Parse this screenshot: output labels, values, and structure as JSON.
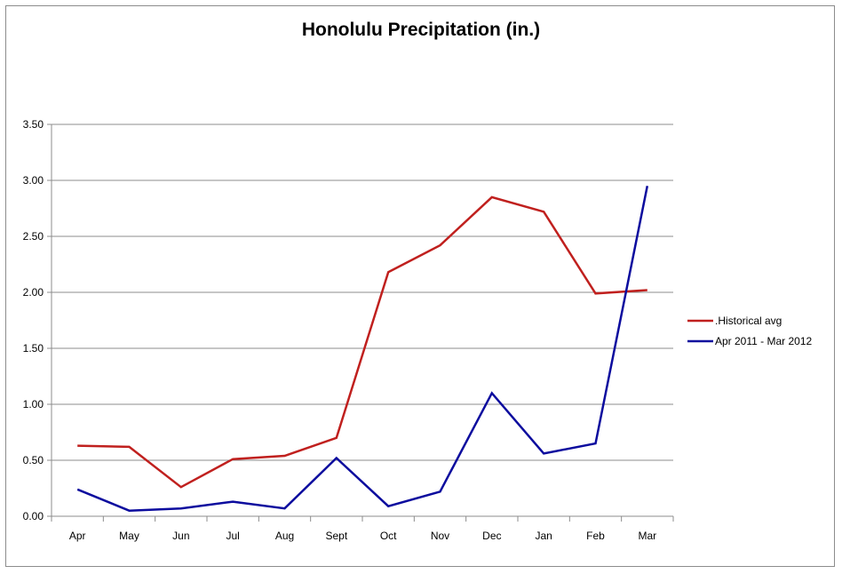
{
  "chart_data": {
    "type": "line",
    "title": "Honolulu Precipitation (in.)",
    "xlabel": "",
    "ylabel": "",
    "categories": [
      "Apr",
      "May",
      "Jun",
      "Jul",
      "Aug",
      "Sept",
      "Oct",
      "Nov",
      "Dec",
      "Jan",
      "Feb",
      "Mar"
    ],
    "y_ticks": [
      "0.00",
      "0.50",
      "1.00",
      "1.50",
      "2.00",
      "2.50",
      "3.00",
      "3.50"
    ],
    "ylim": [
      0,
      3.5
    ],
    "grid": true,
    "legend_position": "right",
    "series": [
      {
        "name": ".Historical avg",
        "color": "#c0201e",
        "values": [
          0.63,
          0.62,
          0.26,
          0.51,
          0.54,
          0.7,
          2.18,
          2.42,
          2.85,
          2.72,
          1.99,
          2.02
        ]
      },
      {
        "name": "Apr 2011 - Mar 2012",
        "color": "#0c0c9e",
        "values": [
          0.24,
          0.05,
          0.07,
          0.13,
          0.07,
          0.52,
          0.09,
          0.22,
          1.1,
          0.56,
          0.65,
          2.95
        ]
      }
    ]
  }
}
